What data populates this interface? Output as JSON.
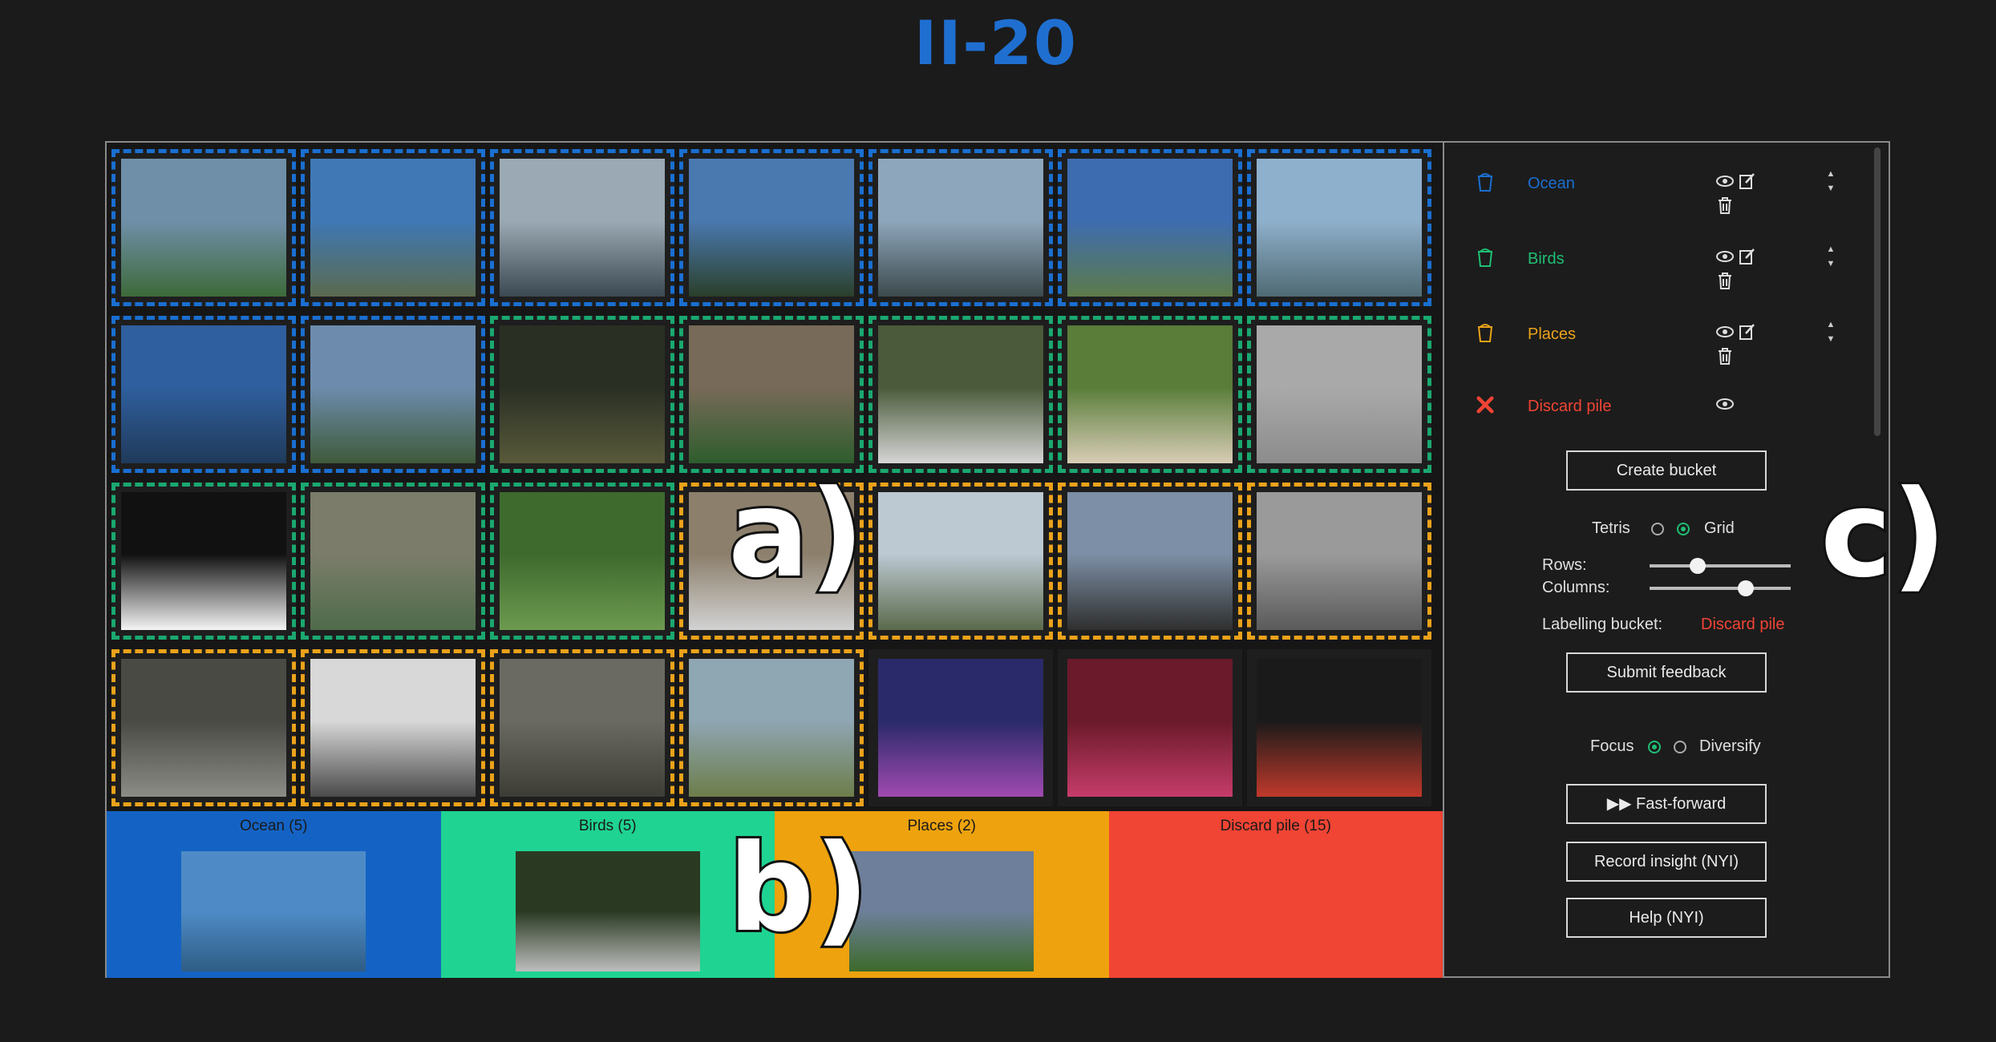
{
  "app": {
    "logo_text": "II-20"
  },
  "grid_tiles": [
    {
      "bucket": "ocean",
      "c1": "#6f8fa8",
      "c2": "#3d6a3a"
    },
    {
      "bucket": "ocean",
      "c1": "#3f78b5",
      "c2": "#5b6a4e"
    },
    {
      "bucket": "ocean",
      "c1": "#9aa9b3",
      "c2": "#3b4a52"
    },
    {
      "bucket": "ocean",
      "c1": "#4a79b0",
      "c2": "#2b3f2a"
    },
    {
      "bucket": "ocean",
      "c1": "#8ea6bb",
      "c2": "#3c4a4d"
    },
    {
      "bucket": "ocean",
      "c1": "#3e6cb0",
      "c2": "#5d7b4a"
    },
    {
      "bucket": "ocean",
      "c1": "#8fb0cc",
      "c2": "#4f6a73"
    },
    {
      "bucket": "ocean",
      "c1": "#2f5f9e",
      "c2": "#203a5a"
    },
    {
      "bucket": "ocean",
      "c1": "#6d8cad",
      "c2": "#3f5a3a"
    },
    {
      "bucket": "birds",
      "c1": "#2a2f24",
      "c2": "#595a3a"
    },
    {
      "bucket": "birds",
      "c1": "#786a58",
      "c2": "#2e5d2d"
    },
    {
      "bucket": "birds",
      "c1": "#4a5a3a",
      "c2": "#d6d6d6"
    },
    {
      "bucket": "birds",
      "c1": "#5a7d3a",
      "c2": "#d8cdb6"
    },
    {
      "bucket": "birds",
      "c1": "#a9a9a9",
      "c2": "#8c8c8c"
    },
    {
      "bucket": "birds",
      "c1": "#111111",
      "c2": "#f4f4f4"
    },
    {
      "bucket": "birds",
      "c1": "#7b7d6a",
      "c2": "#4f6b4a"
    },
    {
      "bucket": "birds",
      "c1": "#3e6a2e",
      "c2": "#6d9a4f"
    },
    {
      "bucket": "places",
      "c1": "#8c7f6c",
      "c2": "#d2d2d2"
    },
    {
      "bucket": "places",
      "c1": "#bcc8d2",
      "c2": "#5a6a4a"
    },
    {
      "bucket": "places",
      "c1": "#7d8fa6",
      "c2": "#2f2f2f"
    },
    {
      "bucket": "places",
      "c1": "#9a9a9a",
      "c2": "#5a5a5a"
    },
    {
      "bucket": "places",
      "c1": "#4a4a44",
      "c2": "#8c8c86"
    },
    {
      "bucket": "places",
      "c1": "#d8d8d8",
      "c2": "#4a4a4a"
    },
    {
      "bucket": "places",
      "c1": "#6a6a62",
      "c2": "#3d3d36"
    },
    {
      "bucket": "places",
      "c1": "#8fa6b3",
      "c2": "#6d7d4a"
    },
    {
      "bucket": "none",
      "c1": "#2a2a6a",
      "c2": "#a04ab0"
    },
    {
      "bucket": "none",
      "c1": "#6a1a2a",
      "c2": "#c63c6a"
    },
    {
      "bucket": "none",
      "c1": "#1a1a1a",
      "c2": "#c0392b"
    }
  ],
  "bucket_bar": [
    {
      "label": "Ocean (5)",
      "color": "#1463c4",
      "thumb": {
        "c1": "#4e8bc6",
        "c2": "#2e5d85"
      }
    },
    {
      "label": "Birds (5)",
      "color": "#1fd392",
      "thumb": {
        "c1": "#2a3a22",
        "c2": "#bdbdbd"
      }
    },
    {
      "label": "Places (2)",
      "color": "#eea20d",
      "thumb": {
        "c1": "#6d7f9a",
        "c2": "#3d6a2a"
      }
    },
    {
      "label": "Discard pile (15)",
      "color": "#f04434"
    }
  ],
  "panel": {
    "buckets": [
      {
        "name": "Ocean",
        "color": "#1a6fd1"
      },
      {
        "name": "Birds",
        "color": "#1fbf74"
      },
      {
        "name": "Places",
        "color": "#eaa21a"
      }
    ],
    "discard": {
      "name": "Discard pile",
      "color": "#f04434"
    },
    "create_bucket": "Create bucket",
    "layout": {
      "tetris": "Tetris",
      "grid": "Grid"
    },
    "rows_label": "Rows:",
    "columns_label": "Columns:",
    "rows_value": 0.34,
    "columns_value": 0.68,
    "labelling_label": "Labelling bucket:",
    "labelling_value": "Discard pile",
    "submit_feedback": "Submit feedback",
    "mode": {
      "focus": "Focus",
      "diversify": "Diversify"
    },
    "fast_forward": "▶▶ Fast-forward",
    "record_insight": "Record insight (NYI)",
    "help": "Help (NYI)"
  },
  "region_marks": {
    "a": "a)",
    "b": "b)",
    "c": "c)"
  }
}
